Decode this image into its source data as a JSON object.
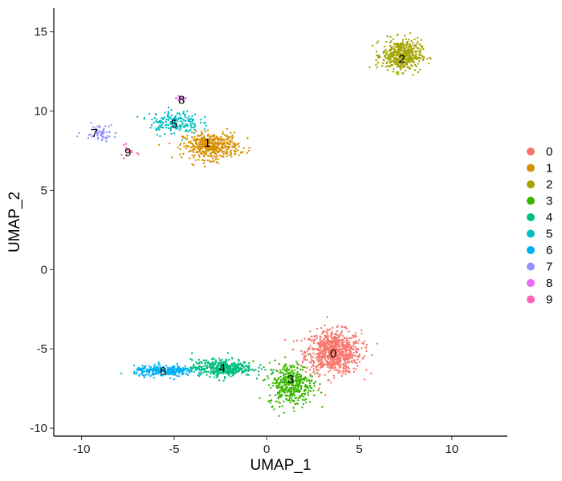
{
  "chart_data": {
    "type": "scatter",
    "xlabel": "UMAP_1",
    "ylabel": "UMAP_2",
    "xlim": [
      -11.5,
      13
    ],
    "ylim": [
      -10.5,
      16.5
    ],
    "xticks": [
      -10,
      -5,
      0,
      5,
      10
    ],
    "yticks": [
      -10,
      -5,
      0,
      5,
      10,
      15
    ],
    "xtick_labels": [
      "-10",
      "-5",
      "0",
      "5",
      "10"
    ],
    "ytick_labels": [
      "-10",
      "-5",
      "0",
      "5",
      "10",
      "15"
    ],
    "grid": false,
    "legend_position": "right",
    "legend": [
      {
        "name": "0",
        "color": "#F8766D"
      },
      {
        "name": "1",
        "color": "#D89000"
      },
      {
        "name": "2",
        "color": "#A3A500"
      },
      {
        "name": "3",
        "color": "#39B600"
      },
      {
        "name": "4",
        "color": "#00BF7D"
      },
      {
        "name": "5",
        "color": "#00BFC4"
      },
      {
        "name": "6",
        "color": "#00B0F6"
      },
      {
        "name": "7",
        "color": "#9590FF"
      },
      {
        "name": "8",
        "color": "#E76BF3"
      },
      {
        "name": "9",
        "color": "#FF62BC"
      }
    ],
    "series": [
      {
        "name": "0",
        "center": [
          3.6,
          -5.2
        ],
        "spread": [
          1.0,
          0.9
        ],
        "approx_points": 800,
        "label_at": [
          3.6,
          -5.3
        ]
      },
      {
        "name": "1",
        "center": [
          -3.0,
          7.8
        ],
        "spread": [
          1.0,
          0.55
        ],
        "approx_points": 450,
        "label_at": [
          -3.2,
          8.0
        ]
      },
      {
        "name": "2",
        "center": [
          7.3,
          13.5
        ],
        "spread": [
          0.7,
          0.65
        ],
        "approx_points": 450,
        "label_at": [
          7.3,
          13.3
        ]
      },
      {
        "name": "3",
        "center": [
          1.3,
          -7.2
        ],
        "spread": [
          0.8,
          0.9
        ],
        "approx_points": 400,
        "label_at": [
          1.3,
          -6.9
        ]
      },
      {
        "name": "4",
        "center": [
          -2.4,
          -6.2
        ],
        "spread": [
          1.1,
          0.35
        ],
        "approx_points": 400,
        "label_at": [
          -2.4,
          -6.2
        ]
      },
      {
        "name": "5",
        "center": [
          -5.0,
          9.3
        ],
        "spread": [
          0.9,
          0.5
        ],
        "approx_points": 180,
        "label_at": [
          -5.0,
          9.2
        ]
      },
      {
        "name": "6",
        "center": [
          -5.5,
          -6.4
        ],
        "spread": [
          1.1,
          0.22
        ],
        "approx_points": 280,
        "label_at": [
          -5.6,
          -6.4
        ]
      },
      {
        "name": "7",
        "center": [
          -9.0,
          8.7
        ],
        "spread": [
          0.6,
          0.35
        ],
        "approx_points": 60,
        "label_at": [
          -9.3,
          8.6
        ]
      },
      {
        "name": "8",
        "center": [
          -4.7,
          10.8
        ],
        "spread": [
          0.15,
          0.08
        ],
        "approx_points": 14,
        "label_at": [
          -4.6,
          10.7
        ]
      },
      {
        "name": "9",
        "center": [
          -7.6,
          7.5
        ],
        "spread": [
          0.4,
          0.3
        ],
        "approx_points": 12,
        "label_at": [
          -7.5,
          7.4
        ]
      }
    ]
  }
}
